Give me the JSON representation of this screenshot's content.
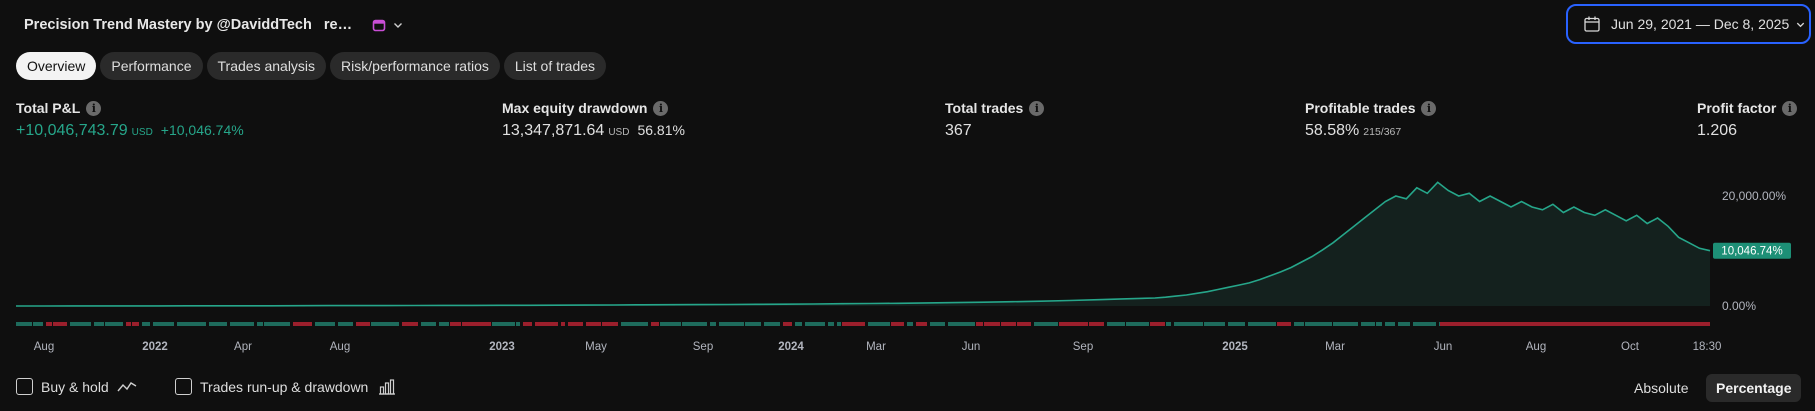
{
  "header": {
    "title": "Precision Trend Mastery by @DaviddTech",
    "title_prefix_glyph": "",
    "title_mid_glyph": "",
    "title_suffix": "re…",
    "title_icon": "calendar-icon-purple",
    "date_range": "Jun 29, 2021 — Dec 8, 2025",
    "accent_color": "#2962ff"
  },
  "tabs": [
    {
      "label": "Overview",
      "active": true
    },
    {
      "label": "Performance",
      "active": false
    },
    {
      "label": "Trades analysis",
      "active": false
    },
    {
      "label": "Risk/performance ratios",
      "active": false
    },
    {
      "label": "List of trades",
      "active": false
    }
  ],
  "metrics": {
    "total_pnl": {
      "label": "Total P&L",
      "value": "+10,046,743.79",
      "unit": "USD",
      "pct": "+10,046.74%"
    },
    "max_drawdown": {
      "label": "Max equity drawdown",
      "value": "13,347,871.64",
      "unit": "USD",
      "pct": "56.81%"
    },
    "total_trades": {
      "label": "Total trades",
      "value": "367"
    },
    "profitable_trades": {
      "label": "Profitable trades",
      "value": "58.58%",
      "sub": "215/367"
    },
    "profit_factor": {
      "label": "Profit factor",
      "value": "1.206"
    }
  },
  "chart_data": {
    "type": "area",
    "y_ticks": [
      "20,000.00%",
      "0.00%"
    ],
    "y_tick_values": [
      20000,
      0
    ],
    "current_value_label": "10,046.74%",
    "current_value": 10046.74,
    "x_ticks": [
      {
        "label": "Aug",
        "bold": false
      },
      {
        "label": "2022",
        "bold": true
      },
      {
        "label": "Apr",
        "bold": false
      },
      {
        "label": "Aug",
        "bold": false
      },
      {
        "label": "2023",
        "bold": true
      },
      {
        "label": "May",
        "bold": false
      },
      {
        "label": "Sep",
        "bold": false
      },
      {
        "label": "2024",
        "bold": true
      },
      {
        "label": "Mar",
        "bold": false
      },
      {
        "label": "Jun",
        "bold": false
      },
      {
        "label": "Sep",
        "bold": false
      },
      {
        "label": "2025",
        "bold": true
      },
      {
        "label": "Mar",
        "bold": false
      },
      {
        "label": "Jun",
        "bold": false
      },
      {
        "label": "Aug",
        "bold": false
      },
      {
        "label": "Oct",
        "bold": false
      },
      {
        "label": "18:30",
        "bold": false
      }
    ],
    "series": [
      {
        "values": [
          0,
          5,
          10,
          15,
          20,
          25,
          30,
          35,
          40,
          45,
          55,
          65,
          70,
          80,
          90,
          100,
          110,
          120,
          130,
          150,
          170,
          190,
          210,
          230,
          250,
          270,
          300,
          330,
          370,
          410,
          450,
          500,
          560,
          620,
          700,
          780,
          880,
          1000,
          1150,
          1300,
          1450,
          1600,
          1800,
          2000,
          2300,
          2600,
          3000,
          3400,
          3800,
          4200,
          4800,
          5500,
          6200,
          7000,
          8000,
          9000,
          10200,
          11500,
          13000,
          14500,
          16000,
          17500,
          19000,
          20000,
          19500,
          21500,
          20500,
          22500,
          21000,
          20000,
          20500,
          19000,
          20000,
          19000,
          18000,
          19000,
          18000,
          17500,
          18500,
          17000,
          18000,
          17000,
          16500,
          17500,
          16500,
          15500,
          16500,
          15000,
          16000,
          14500,
          12500,
          11500,
          10500,
          10046.74
        ],
        "color": "#26a68a"
      }
    ],
    "trade_strip_colors": {
      "win": "#1e6b5c",
      "loss": "#9b1f2c"
    }
  },
  "footer": {
    "buy_hold_label": "Buy & hold",
    "runup_label": "Trades run-up & drawdown",
    "absolute_label": "Absolute",
    "percentage_label": "Percentage"
  }
}
